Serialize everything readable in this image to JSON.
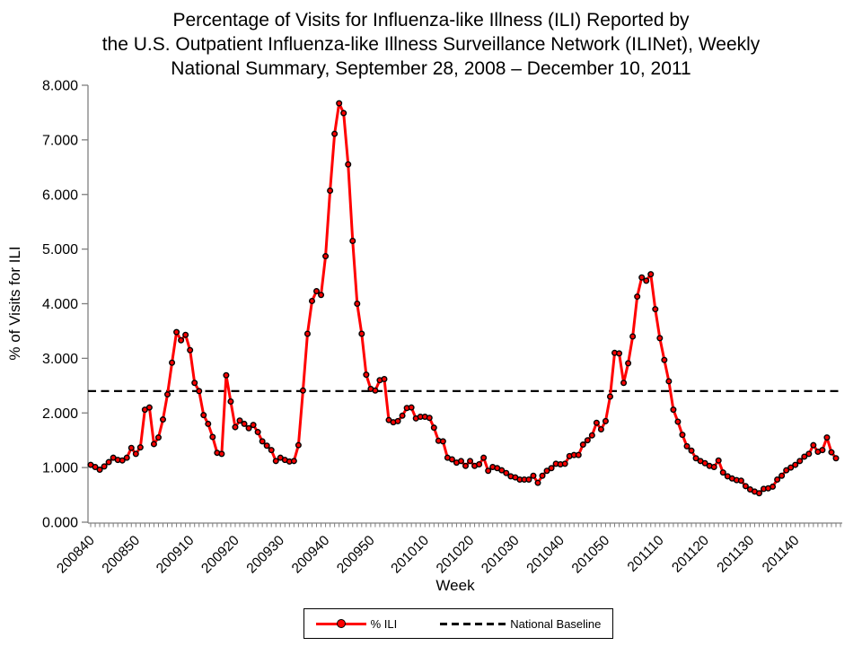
{
  "title": {
    "line1": "Percentage of Visits for Influenza-like Illness (ILI) Reported by",
    "line2": "the U.S. Outpatient Influenza-like Illness Surveillance Network (ILINet), Weekly",
    "line3": "National Summary, September 28, 2008 – December 10, 2011"
  },
  "legend": {
    "ili_label": "% ILI",
    "baseline_label": "National Baseline"
  },
  "chart_data": {
    "type": "line",
    "title": "Percentage of Visits for ILI Reported by ILINet, Weekly National Summary, September 28, 2008 - December 10, 2011",
    "xlabel": "Week",
    "ylabel": "% of Visits for ILI",
    "ylim": [
      0,
      8
    ],
    "y_tick_labels": [
      "0.000",
      "1.000",
      "2.000",
      "3.000",
      "4.000",
      "5.000",
      "6.000",
      "7.000",
      "8.000"
    ],
    "x_tick_labels": [
      "200840",
      "200850",
      "200910",
      "200920",
      "200930",
      "200940",
      "200950",
      "201010",
      "201020",
      "201030",
      "201040",
      "201050",
      "201110",
      "201120",
      "201130",
      "201140"
    ],
    "grid": false,
    "legend_position": "bottom",
    "line_color": "#ff0000",
    "baseline_color": "#000000",
    "weeks": [
      "200840",
      "200841",
      "200842",
      "200843",
      "200844",
      "200845",
      "200846",
      "200847",
      "200848",
      "200849",
      "200850",
      "200851",
      "200852",
      "200901",
      "200902",
      "200903",
      "200904",
      "200905",
      "200906",
      "200907",
      "200908",
      "200909",
      "200910",
      "200911",
      "200912",
      "200913",
      "200914",
      "200915",
      "200916",
      "200917",
      "200918",
      "200919",
      "200920",
      "200921",
      "200922",
      "200923",
      "200924",
      "200925",
      "200926",
      "200927",
      "200928",
      "200929",
      "200930",
      "200931",
      "200932",
      "200933",
      "200934",
      "200935",
      "200936",
      "200937",
      "200938",
      "200939",
      "200940",
      "200941",
      "200942",
      "200943",
      "200944",
      "200945",
      "200946",
      "200947",
      "200948",
      "200949",
      "200950",
      "200951",
      "200952",
      "201001",
      "201002",
      "201003",
      "201004",
      "201005",
      "201006",
      "201007",
      "201008",
      "201009",
      "201010",
      "201011",
      "201012",
      "201013",
      "201014",
      "201015",
      "201016",
      "201017",
      "201018",
      "201019",
      "201020",
      "201021",
      "201022",
      "201023",
      "201024",
      "201025",
      "201026",
      "201027",
      "201028",
      "201029",
      "201030",
      "201031",
      "201032",
      "201033",
      "201034",
      "201035",
      "201036",
      "201037",
      "201038",
      "201039",
      "201040",
      "201041",
      "201042",
      "201043",
      "201044",
      "201045",
      "201046",
      "201047",
      "201048",
      "201049",
      "201050",
      "201051",
      "201052",
      "201101",
      "201102",
      "201103",
      "201104",
      "201105",
      "201106",
      "201107",
      "201108",
      "201109",
      "201110",
      "201111",
      "201112",
      "201113",
      "201114",
      "201115",
      "201116",
      "201117",
      "201118",
      "201119",
      "201120",
      "201121",
      "201122",
      "201123",
      "201124",
      "201125",
      "201126",
      "201127",
      "201128",
      "201129",
      "201130",
      "201131",
      "201132",
      "201133",
      "201134",
      "201135",
      "201136",
      "201137",
      "201138",
      "201139",
      "201140",
      "201141",
      "201142",
      "201143",
      "201144",
      "201145",
      "201146",
      "201147",
      "201148",
      "201149"
    ],
    "series": [
      {
        "name": "% ILI",
        "color": "#ff0000",
        "values": [
          1.05,
          1.01,
          0.96,
          1.02,
          1.1,
          1.18,
          1.14,
          1.13,
          1.18,
          1.36,
          1.25,
          1.37,
          2.06,
          2.1,
          1.43,
          1.55,
          1.88,
          2.34,
          2.92,
          3.48,
          3.33,
          3.43,
          3.15,
          2.55,
          2.4,
          1.96,
          1.8,
          1.56,
          1.27,
          1.25,
          2.69,
          2.21,
          1.74,
          1.86,
          1.8,
          1.72,
          1.78,
          1.65,
          1.48,
          1.4,
          1.32,
          1.12,
          1.18,
          1.14,
          1.11,
          1.12,
          1.41,
          2.41,
          3.45,
          4.05,
          4.23,
          4.16,
          4.87,
          6.07,
          7.11,
          7.67,
          7.49,
          6.55,
          5.15,
          4.0,
          3.45,
          2.7,
          2.44,
          2.41,
          2.6,
          2.62,
          1.87,
          1.83,
          1.85,
          1.95,
          2.09,
          2.1,
          1.9,
          1.93,
          1.93,
          1.91,
          1.73,
          1.49,
          1.48,
          1.18,
          1.15,
          1.09,
          1.12,
          1.03,
          1.12,
          1.03,
          1.06,
          1.18,
          0.94,
          1.01,
          0.99,
          0.95,
          0.9,
          0.84,
          0.82,
          0.78,
          0.78,
          0.78,
          0.85,
          0.72,
          0.85,
          0.94,
          0.99,
          1.07,
          1.06,
          1.07,
          1.21,
          1.23,
          1.23,
          1.42,
          1.5,
          1.59,
          1.82,
          1.7,
          1.85,
          2.3,
          3.1,
          3.09,
          2.55,
          2.91,
          3.4,
          4.13,
          4.48,
          4.42,
          4.54,
          3.9,
          3.37,
          2.97,
          2.58,
          2.06,
          1.84,
          1.6,
          1.39,
          1.31,
          1.17,
          1.12,
          1.08,
          1.03,
          1.01,
          1.13,
          0.91,
          0.84,
          0.8,
          0.77,
          0.76,
          0.66,
          0.6,
          0.56,
          0.53,
          0.61,
          0.62,
          0.65,
          0.78,
          0.85,
          0.95,
          1.0,
          1.05,
          1.12,
          1.2,
          1.25,
          1.41,
          1.29,
          1.32,
          1.55,
          1.28,
          1.17
        ]
      },
      {
        "name": "National Baseline",
        "style": "dashed",
        "color": "#000000",
        "value": 2.4
      }
    ]
  }
}
